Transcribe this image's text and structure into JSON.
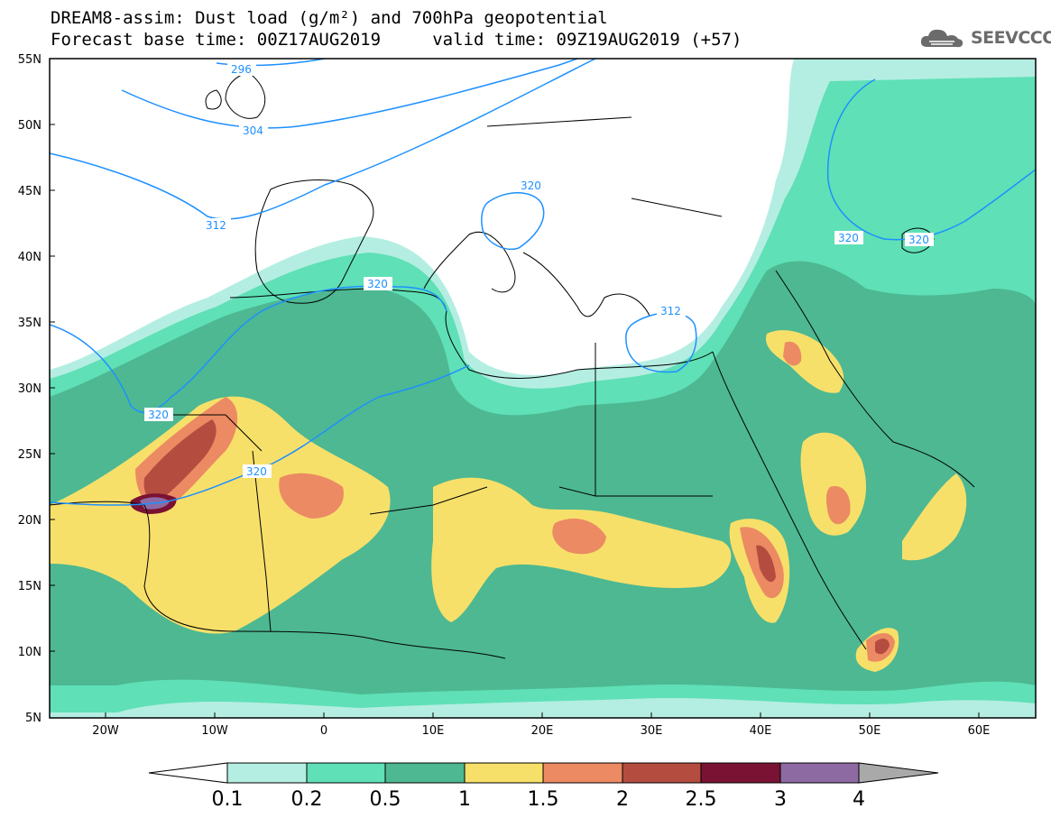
{
  "title": {
    "line1": "DREAM8-assim: Dust load (g/m²) and 700hPa geopotential",
    "line2": "Forecast base time: 00Z17AUG2019     valid time: 09Z19AUG2019 (+57)"
  },
  "logo": {
    "text": "SEEVCCC",
    "icon": "cloud-icon"
  },
  "axes": {
    "lat_labels": [
      "55N",
      "50N",
      "45N",
      "40N",
      "35N",
      "30N",
      "25N",
      "20N",
      "15N",
      "10N",
      "5N"
    ],
    "lon_labels": [
      "20W",
      "10W",
      "0",
      "10E",
      "20E",
      "30E",
      "40E",
      "50E",
      "60E"
    ]
  },
  "contours": {
    "labels": [
      "296",
      "304",
      "312",
      "320",
      "320",
      "320",
      "312",
      "320",
      "320",
      "320"
    ]
  },
  "colorbar": {
    "labels": [
      "0.1",
      "0.2",
      "0.5",
      "1",
      "1.5",
      "2",
      "2.5",
      "3",
      "4"
    ],
    "colors": [
      "#b4eee2",
      "#5fe0b6",
      "#4db892",
      "#f7e06a",
      "#ec8a63",
      "#b44d3f",
      "#7a1233",
      "#8e6aa3"
    ],
    "under_color": "#ffffff",
    "over_color": "#a9a9a9"
  }
}
